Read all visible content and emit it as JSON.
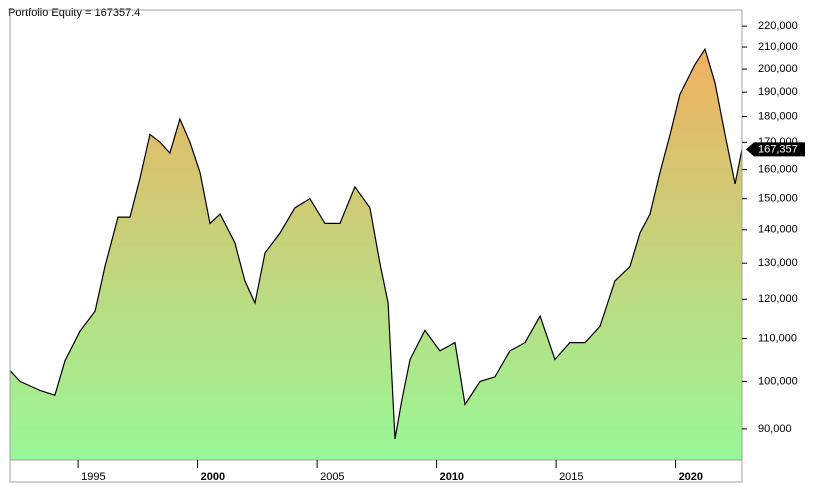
{
  "chart_data": {
    "type": "area",
    "title": "Portfolio Equity = 167357.4",
    "log_scale": true,
    "grid": false,
    "line_color": "#000000",
    "fill_colors": [
      "#f0b060",
      "#98f898"
    ],
    "x": [
      1992.15,
      1992.57,
      1993.41,
      1994.03,
      1994.45,
      1995.08,
      1995.71,
      1996.12,
      1996.67,
      1997.17,
      1997.59,
      1998.01,
      1998.43,
      1998.84,
      1999.26,
      1999.68,
      2000.1,
      2000.52,
      2000.94,
      2001.56,
      2001.98,
      2002.4,
      2002.82,
      2003.45,
      2004.07,
      2004.7,
      2005.33,
      2005.96,
      2006.58,
      2007.21,
      2007.63,
      2007.97,
      2008.26,
      2008.55,
      2008.89,
      2009.51,
      2010.14,
      2010.77,
      2011.19,
      2011.82,
      2012.44,
      2013.07,
      2013.7,
      2014.33,
      2014.95,
      2015.58,
      2016.21,
      2016.84,
      2017.46,
      2018.09,
      2018.51,
      2018.93,
      2019.35,
      2019.77,
      2020.18,
      2020.81,
      2021.23,
      2021.65,
      2022.07,
      2022.49,
      2022.78
    ],
    "values": [
      102400,
      100000,
      98000,
      97000,
      104700,
      111800,
      116900,
      129000,
      144000,
      144000,
      157000,
      173000,
      170000,
      166000,
      179000,
      170000,
      159000,
      142000,
      145000,
      136000,
      125000,
      119000,
      133000,
      139000,
      147000,
      150000,
      142000,
      142000,
      154000,
      147000,
      130000,
      119000,
      88000,
      96000,
      105000,
      112000,
      107000,
      109000,
      95000,
      100000,
      101000,
      107000,
      109000,
      115600,
      105000,
      109000,
      109000,
      113000,
      125000,
      129000,
      139000,
      145000,
      159000,
      173000,
      189000,
      202000,
      209000,
      194000,
      173000,
      155000,
      167357.4
    ],
    "last_label": {
      "value": 167357.4,
      "label": "167,357"
    },
    "xlim": [
      1992.15,
      2022.78
    ],
    "xticks": [
      1995,
      2000,
      2005,
      2010,
      2015,
      2020
    ],
    "ylim": [
      84000,
      228000
    ],
    "yticks": [
      {
        "value": 90000,
        "label": "90,000"
      },
      {
        "value": 100000,
        "label": "100,000"
      },
      {
        "value": 110000,
        "label": "110,000"
      },
      {
        "value": 120000,
        "label": "120,000"
      },
      {
        "value": 130000,
        "label": "130,000"
      },
      {
        "value": 140000,
        "label": "140,000"
      },
      {
        "value": 150000,
        "label": "150,000"
      },
      {
        "value": 160000,
        "label": "160,000"
      },
      {
        "value": 170000,
        "label": "170,000"
      },
      {
        "value": 180000,
        "label": "180,000"
      },
      {
        "value": 190000,
        "label": "190,000"
      },
      {
        "value": 200000,
        "label": "200,000"
      },
      {
        "value": 210000,
        "label": "210,000"
      },
      {
        "value": 220000,
        "label": "220,000"
      }
    ]
  }
}
